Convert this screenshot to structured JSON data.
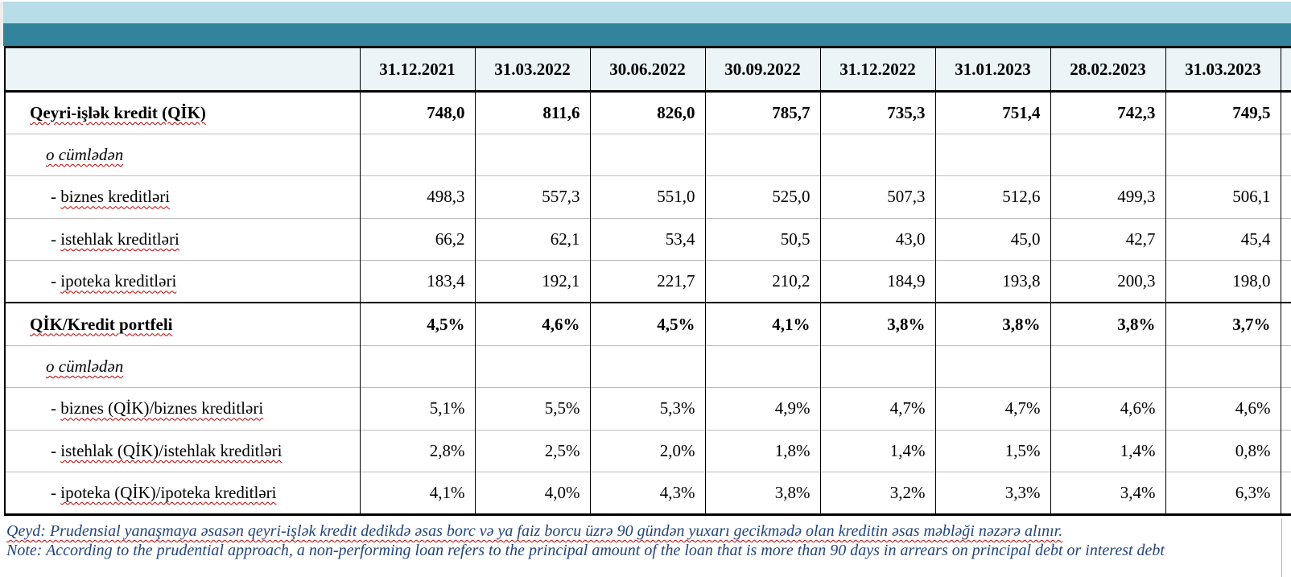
{
  "header": {
    "columns": [
      "31.12.2021",
      "31.03.2022",
      "30.06.2022",
      "30.09.2022",
      "31.12.2022",
      "31.01.2023",
      "28.02.2023",
      "31.03.2023"
    ]
  },
  "table": {
    "rows": [
      {
        "prefix": "",
        "label": "Qeyri-işlək kredit (QİK)",
        "bold": true,
        "italic": false,
        "section_start": true,
        "indent": 1,
        "values": [
          "748,0",
          "811,6",
          "826,0",
          "785,7",
          "735,3",
          "751,4",
          "742,3",
          "749,5"
        ]
      },
      {
        "prefix": "",
        "label": "o cümlədən",
        "bold": false,
        "italic": true,
        "section_start": false,
        "indent": 2,
        "values": [
          "",
          "",
          "",
          "",
          "",
          "",
          "",
          ""
        ]
      },
      {
        "prefix": "- ",
        "label": "biznes kreditləri",
        "bold": false,
        "italic": false,
        "section_start": false,
        "indent": 3,
        "values": [
          "498,3",
          "557,3",
          "551,0",
          "525,0",
          "507,3",
          "512,6",
          "499,3",
          "506,1"
        ]
      },
      {
        "prefix": "- ",
        "label": "istehlak kreditləri",
        "bold": false,
        "italic": false,
        "section_start": false,
        "indent": 3,
        "values": [
          "66,2",
          "62,1",
          "53,4",
          "50,5",
          "43,0",
          "45,0",
          "42,7",
          "45,4"
        ]
      },
      {
        "prefix": "- ",
        "label": "ipoteka kreditləri",
        "bold": false,
        "italic": false,
        "section_start": false,
        "indent": 3,
        "values": [
          "183,4",
          "192,1",
          "221,7",
          "210,2",
          "184,9",
          "193,8",
          "200,3",
          "198,0"
        ]
      },
      {
        "prefix": "",
        "label": "QİK/Kredit portfeli",
        "bold": true,
        "italic": false,
        "section_start": true,
        "indent": 1,
        "values": [
          "4,5%",
          "4,6%",
          "4,5%",
          "4,1%",
          "3,8%",
          "3,8%",
          "3,8%",
          "3,7%"
        ]
      },
      {
        "prefix": "",
        "label": "o cümlədən",
        "bold": false,
        "italic": true,
        "section_start": false,
        "indent": 2,
        "values": [
          "",
          "",
          "",
          "",
          "",
          "",
          "",
          ""
        ]
      },
      {
        "prefix": "- ",
        "label": "biznes (QİK)/biznes kreditləri",
        "bold": false,
        "italic": false,
        "section_start": false,
        "indent": 3,
        "values": [
          "5,1%",
          "5,5%",
          "5,3%",
          "4,9%",
          "4,7%",
          "4,7%",
          "4,6%",
          "4,6%"
        ]
      },
      {
        "prefix": "- ",
        "label": "istehlak (QİK)/istehlak kreditləri",
        "bold": false,
        "italic": false,
        "section_start": false,
        "indent": 3,
        "values": [
          "2,8%",
          "2,5%",
          "2,0%",
          "1,8%",
          "1,4%",
          "1,5%",
          "1,4%",
          "0,8%"
        ]
      },
      {
        "prefix": "- ",
        "label": "ipoteka (QİK)/ipoteka kreditləri",
        "bold": false,
        "italic": false,
        "section_start": false,
        "indent": 3,
        "values": [
          "4,1%",
          "4,0%",
          "4,3%",
          "3,8%",
          "3,2%",
          "3,3%",
          "3,4%",
          "6,3%"
        ]
      }
    ]
  },
  "notes": {
    "az": "Qeyd: Prudensial yanaşmaya əsasən qeyri-işlək kredit dedikdə əsas borc və ya faiz borcu üzrə 90 gündən yuxarı gecikmədə olan kreditin əsas məbləği nəzərə alınır.",
    "en": "Note: According to the prudential approach, a non-performing loan refers to the principal amount of the loan that is more than 90 days in arrears on principal debt or interest debt"
  },
  "colors": {
    "accent_light_blue": "#b7dee8",
    "accent_teal": "#31849b",
    "header_bg": "#ebf4f6",
    "note_text": "#24457a",
    "spellcheck_red": "#c00000"
  }
}
